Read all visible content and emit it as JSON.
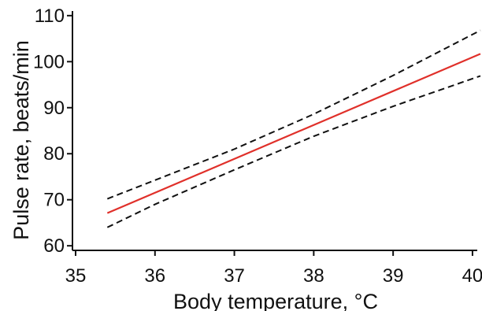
{
  "chart_data": {
    "type": "line",
    "xlabel": "Body temperature, °C",
    "ylabel": "Pulse rate, beats/min",
    "xlim": [
      35,
      40.1
    ],
    "ylim": [
      59,
      111
    ],
    "xticks": [
      35,
      36,
      37,
      38,
      39,
      40
    ],
    "yticks": [
      60,
      70,
      80,
      90,
      100,
      110
    ],
    "grid": false,
    "legend": "none",
    "series": [
      {
        "role": "estimate",
        "style": "solid",
        "color": "#e0302a",
        "x": [
          35.4,
          40.1
        ],
        "y": [
          67.1,
          101.7
        ]
      },
      {
        "role": "upper-bound",
        "style": "dashed",
        "color": "#111111",
        "x": [
          35.4,
          37.0,
          38.0,
          39.0,
          40.1
        ],
        "y": [
          70.2,
          81.0,
          88.6,
          97.0,
          106.8
        ]
      },
      {
        "role": "lower-bound",
        "style": "dashed",
        "color": "#111111",
        "x": [
          35.4,
          36.0,
          37.0,
          38.0,
          39.0,
          40.1
        ],
        "y": [
          64.0,
          69.0,
          76.5,
          83.8,
          90.3,
          96.9
        ]
      }
    ]
  }
}
